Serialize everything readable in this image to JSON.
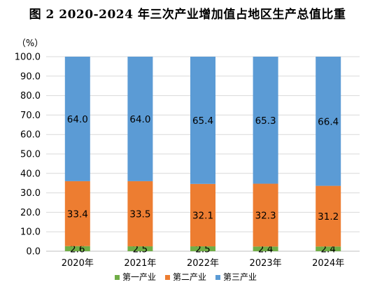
{
  "title": "图 2   2020-2024 年三次产业增加值占地区生产总值比重",
  "chart_data": {
    "type": "bar",
    "stacked": true,
    "unit_label": "（%）",
    "categories": [
      "2020年",
      "2021年",
      "2022年",
      "2023年",
      "2024年"
    ],
    "series": [
      {
        "name": "第一产业",
        "color": "#70AD47",
        "values": [
          2.6,
          2.5,
          2.5,
          2.4,
          2.4
        ]
      },
      {
        "name": "第二产业",
        "color": "#ED7D31",
        "values": [
          33.4,
          33.5,
          32.1,
          32.3,
          31.2
        ]
      },
      {
        "name": "第三产业",
        "color": "#5B9BD5",
        "values": [
          64.0,
          64.0,
          65.4,
          65.3,
          66.4
        ]
      }
    ],
    "ylim": [
      0,
      100
    ],
    "yticks": [
      "0.0",
      "10.0",
      "20.0",
      "30.0",
      "40.0",
      "50.0",
      "60.0",
      "70.0",
      "80.0",
      "90.0",
      "100.0"
    ],
    "grid": true,
    "legend_position": "bottom"
  }
}
